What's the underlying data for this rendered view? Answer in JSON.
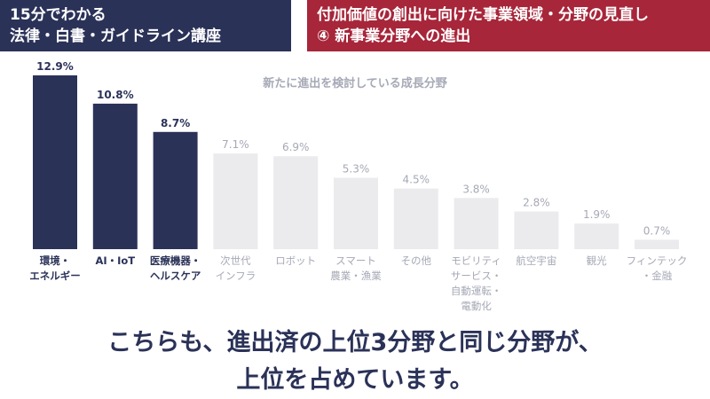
{
  "header": {
    "left_lines": [
      "15分でわかる",
      "法律・白書・ガイドライン講座"
    ],
    "right_lines": [
      "付加価値の創出に向けた事業領域・分野の見直し",
      "④ 新事業分野への進出"
    ]
  },
  "chart_data": {
    "type": "bar",
    "title": "新たに進出を検討している成長分野",
    "unit": "%",
    "categories": [
      [
        "環境・",
        "エネルギー"
      ],
      [
        "AI・IoT"
      ],
      [
        "医療機器・",
        "ヘルスケア"
      ],
      [
        "次世代",
        "インフラ"
      ],
      [
        "ロボット"
      ],
      [
        "スマート",
        "農業・漁業"
      ],
      [
        "その他"
      ],
      [
        "モビリティ",
        "サービス・",
        "自動運転・",
        "電動化"
      ],
      [
        "航空宇宙"
      ],
      [
        "観光"
      ],
      [
        "フィンテック",
        "・金融"
      ]
    ],
    "values": [
      12.9,
      10.8,
      8.7,
      7.1,
      6.9,
      5.3,
      4.5,
      3.8,
      2.8,
      1.9,
      0.7
    ],
    "value_labels": [
      "12.9%",
      "10.8%",
      "8.7%",
      "7.1%",
      "6.9%",
      "5.3%",
      "4.5%",
      "3.8%",
      "2.8%",
      "1.9%",
      "0.7%"
    ],
    "highlighted_count": 3,
    "ylim": [
      0,
      12.9
    ],
    "grid": false,
    "colors": {
      "highlight": "#2b3258",
      "muted_bar": "#ebebee",
      "muted_text": "#a6a9b6"
    }
  },
  "footer": {
    "lines": [
      "こちらも、進出済の上位3分野と同じ分野が、",
      "上位を占めています。"
    ]
  },
  "colors": {
    "navy": "#2b3258",
    "crimson": "#a7263a"
  }
}
